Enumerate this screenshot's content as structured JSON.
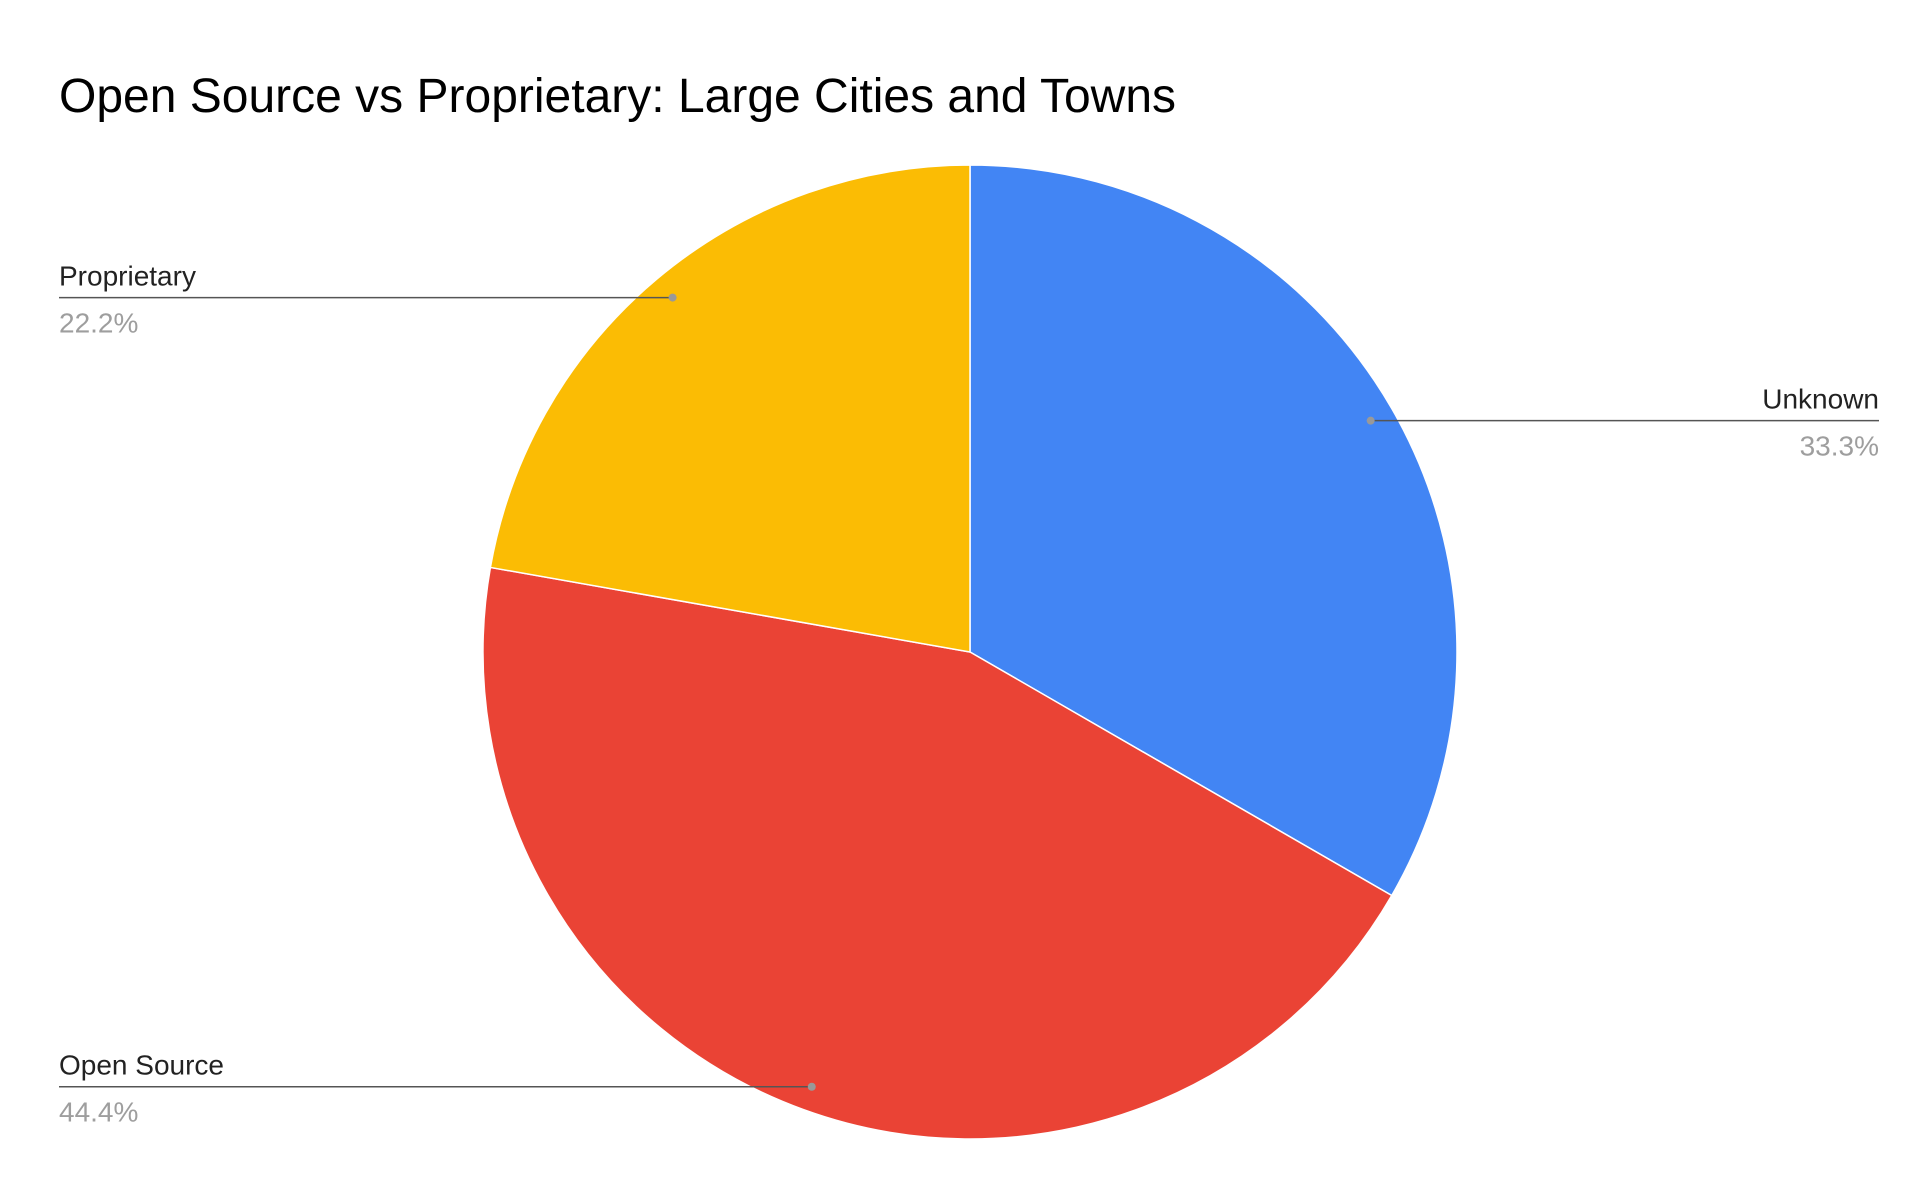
{
  "chart_data": {
    "type": "pie",
    "title": "Open Source vs Proprietary: Large Cities and Towns",
    "categories": [
      "Unknown",
      "Open Source",
      "Proprietary"
    ],
    "values": [
      33.3,
      44.4,
      22.2
    ],
    "value_labels": [
      "33.3%",
      "44.4%",
      "22.2%"
    ],
    "colors": [
      "#4285f4",
      "#ea4335",
      "#fbbc04"
    ]
  }
}
